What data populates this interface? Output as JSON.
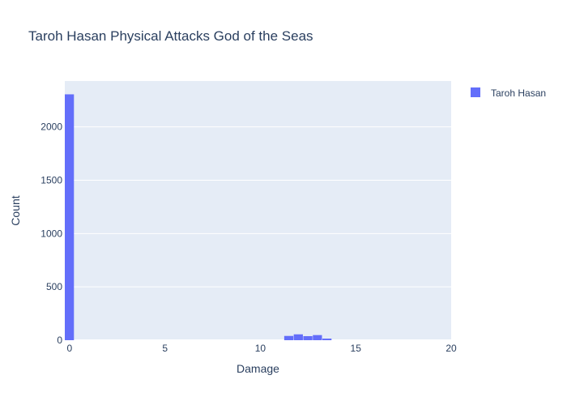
{
  "chart_data": {
    "type": "bar",
    "title": "Taroh Hasan Physical Attacks God of the Seas",
    "xlabel": "Damage",
    "ylabel": "Count",
    "xlim": [
      -0.25,
      20
    ],
    "ylim": [
      0,
      2430
    ],
    "xticks": [
      0,
      5,
      10,
      15,
      20
    ],
    "yticks": [
      0,
      500,
      1000,
      1500,
      2000
    ],
    "bin_width": 0.5,
    "series": [
      {
        "name": "Taroh Hasan",
        "color": "#636efa",
        "bins": [
          {
            "x": 0,
            "count": 2305
          },
          {
            "x": 11.5,
            "count": 40
          },
          {
            "x": 12,
            "count": 55
          },
          {
            "x": 12.5,
            "count": 38
          },
          {
            "x": 13,
            "count": 48
          },
          {
            "x": 13.5,
            "count": 15
          }
        ]
      }
    ],
    "legend": {
      "position": "top-right",
      "entries": [
        "Taroh Hasan"
      ]
    }
  }
}
